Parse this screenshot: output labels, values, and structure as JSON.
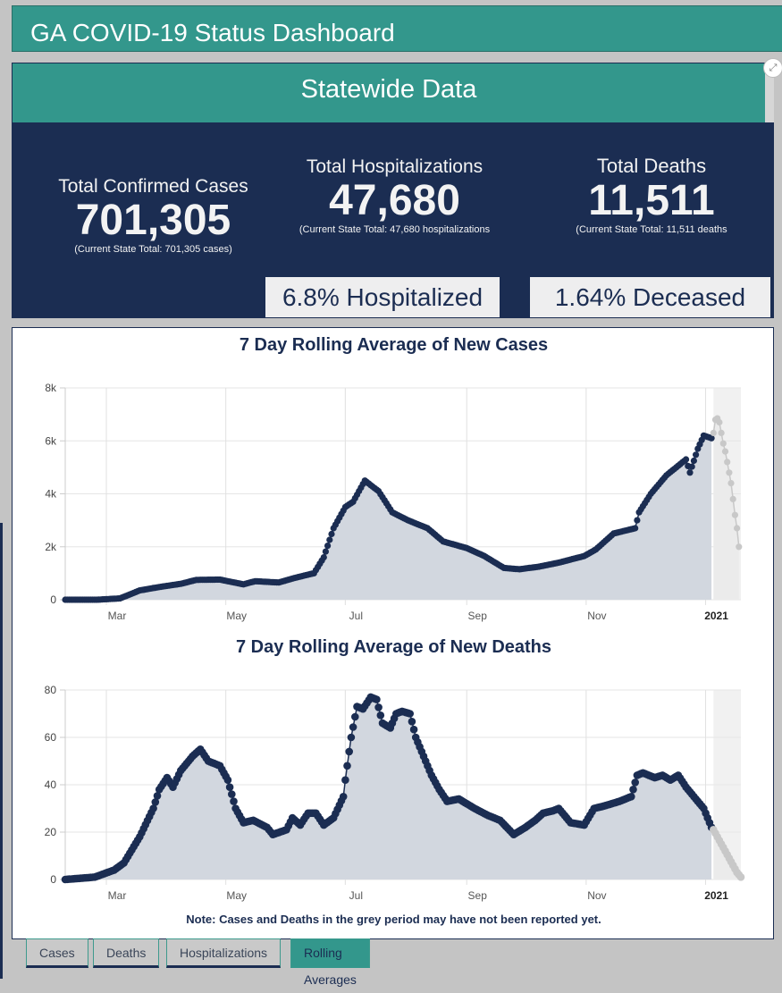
{
  "app": {
    "title": "GA COVID-19 Status Dashboard"
  },
  "statewide": {
    "header": "Statewide Data",
    "expand_icon": "expand-arrows-icon",
    "cases": {
      "label": "Total Confirmed Cases",
      "value": "701,305",
      "sub": "(Current State Total: 701,305 cases)"
    },
    "hospitalizations": {
      "label": "Total Hospitalizations",
      "value": "47,680",
      "sub": "(Current State Total: 47,680 hospitalizations"
    },
    "deaths": {
      "label": "Total Deaths",
      "value": "11,511",
      "sub": "(Current State Total: 11,511 deaths"
    },
    "hospitalized_pct": "6.8% Hospitalized",
    "deceased_pct": "1.64% Deceased"
  },
  "note": "Note: Cases and Deaths in the grey period may have not been reported yet.",
  "tabs": [
    {
      "label": "Cases",
      "active": false
    },
    {
      "label": "Deaths",
      "active": false
    },
    {
      "label": "Hospitalizations",
      "active": false
    },
    {
      "label": "Rolling Averages",
      "active": true
    }
  ],
  "colors": {
    "teal": "#33978c",
    "navy": "#1b2d52",
    "grey_points": "#c8c8c8",
    "area_fill": "#d2d7df"
  },
  "chart_data": [
    {
      "type": "area",
      "title": "7 Day Rolling Average of New Cases",
      "xlabel": "",
      "ylabel": "",
      "x_start": "2020-02-09",
      "x_end": "2021-01-19",
      "grey_period_start": "2021-01-05",
      "ylim": [
        0,
        8000
      ],
      "yticks": [
        0,
        2000,
        4000,
        6000,
        8000
      ],
      "ytick_labels": [
        "0",
        "2k",
        "4k",
        "6k",
        "8k"
      ],
      "xticks": [
        "2020-03-01",
        "2020-05-01",
        "2020-07-01",
        "2020-09-01",
        "2020-11-01",
        "2021-01-01"
      ],
      "xtick_labels": [
        "Mar",
        "May",
        "Jul",
        "Sep",
        "Nov",
        "2021"
      ],
      "grid": true,
      "series": [
        {
          "name": "reported",
          "points": [
            [
              "2020-02-09",
              0
            ],
            [
              "2020-02-25",
              0
            ],
            [
              "2020-03-08",
              50
            ],
            [
              "2020-03-18",
              350
            ],
            [
              "2020-03-28",
              480
            ],
            [
              "2020-04-08",
              600
            ],
            [
              "2020-04-16",
              750
            ],
            [
              "2020-04-28",
              760
            ],
            [
              "2020-05-10",
              580
            ],
            [
              "2020-05-16",
              700
            ],
            [
              "2020-05-28",
              650
            ],
            [
              "2020-06-05",
              820
            ],
            [
              "2020-06-15",
              1000
            ],
            [
              "2020-06-20",
              1600
            ],
            [
              "2020-06-25",
              2700
            ],
            [
              "2020-07-01",
              3500
            ],
            [
              "2020-07-05",
              3700
            ],
            [
              "2020-07-11",
              4500
            ],
            [
              "2020-07-18",
              4100
            ],
            [
              "2020-07-25",
              3300
            ],
            [
              "2020-08-02",
              3000
            ],
            [
              "2020-08-12",
              2700
            ],
            [
              "2020-08-20",
              2200
            ],
            [
              "2020-09-01",
              1950
            ],
            [
              "2020-09-10",
              1650
            ],
            [
              "2020-09-20",
              1200
            ],
            [
              "2020-09-28",
              1150
            ],
            [
              "2020-10-08",
              1250
            ],
            [
              "2020-10-18",
              1400
            ],
            [
              "2020-10-31",
              1650
            ],
            [
              "2020-11-06",
              1900
            ],
            [
              "2020-11-15",
              2500
            ],
            [
              "2020-11-26",
              2700
            ],
            [
              "2020-11-28",
              3300
            ],
            [
              "2020-12-04",
              4000
            ],
            [
              "2020-12-12",
              4700
            ],
            [
              "2020-12-22",
              5300
            ],
            [
              "2020-12-24",
              4800
            ],
            [
              "2020-12-28",
              5700
            ],
            [
              "2020-12-31",
              6200
            ],
            [
              "2021-01-04",
              6100
            ]
          ]
        },
        {
          "name": "grey_period",
          "points": [
            [
              "2021-01-05",
              6300
            ],
            [
              "2021-01-06",
              6800
            ],
            [
              "2021-01-07",
              6850
            ],
            [
              "2021-01-08",
              6700
            ],
            [
              "2021-01-09",
              6300
            ],
            [
              "2021-01-10",
              5900
            ],
            [
              "2021-01-11",
              5600
            ],
            [
              "2021-01-12",
              5200
            ],
            [
              "2021-01-13",
              4800
            ],
            [
              "2021-01-14",
              4400
            ],
            [
              "2021-01-15",
              3800
            ],
            [
              "2021-01-16",
              3200
            ],
            [
              "2021-01-17",
              2700
            ],
            [
              "2021-01-18",
              2000
            ]
          ]
        }
      ]
    },
    {
      "type": "area",
      "title": "7 Day Rolling Average of New Deaths",
      "xlabel": "",
      "ylabel": "",
      "x_start": "2020-02-09",
      "x_end": "2021-01-19",
      "grey_period_start": "2021-01-05",
      "ylim": [
        0,
        80
      ],
      "yticks": [
        0,
        20,
        40,
        60,
        80
      ],
      "ytick_labels": [
        "0",
        "20",
        "40",
        "60",
        "80"
      ],
      "xticks": [
        "2020-03-01",
        "2020-05-01",
        "2020-07-01",
        "2020-09-01",
        "2020-11-01",
        "2021-01-01"
      ],
      "xtick_labels": [
        "Mar",
        "May",
        "Jul",
        "Sep",
        "Nov",
        "2021"
      ],
      "grid": true,
      "series": [
        {
          "name": "reported",
          "points": [
            [
              "2020-02-09",
              0
            ],
            [
              "2020-02-24",
              1
            ],
            [
              "2020-03-05",
              4
            ],
            [
              "2020-03-10",
              7
            ],
            [
              "2020-03-18",
              18
            ],
            [
              "2020-03-25",
              30
            ],
            [
              "2020-03-28",
              38
            ],
            [
              "2020-04-01",
              43
            ],
            [
              "2020-04-04",
              39
            ],
            [
              "2020-04-08",
              46
            ],
            [
              "2020-04-14",
              52
            ],
            [
              "2020-04-18",
              55
            ],
            [
              "2020-04-22",
              50
            ],
            [
              "2020-04-28",
              48
            ],
            [
              "2020-05-02",
              42
            ],
            [
              "2020-05-06",
              30
            ],
            [
              "2020-05-10",
              24
            ],
            [
              "2020-05-15",
              25
            ],
            [
              "2020-05-22",
              22
            ],
            [
              "2020-05-25",
              19
            ],
            [
              "2020-06-01",
              21
            ],
            [
              "2020-06-04",
              26
            ],
            [
              "2020-06-08",
              23
            ],
            [
              "2020-06-12",
              28
            ],
            [
              "2020-06-16",
              28
            ],
            [
              "2020-06-20",
              23
            ],
            [
              "2020-06-25",
              26
            ],
            [
              "2020-06-30",
              35
            ],
            [
              "2020-07-01",
              42
            ],
            [
              "2020-07-04",
              60
            ],
            [
              "2020-07-07",
              73
            ],
            [
              "2020-07-10",
              72
            ],
            [
              "2020-07-14",
              77
            ],
            [
              "2020-07-17",
              76
            ],
            [
              "2020-07-20",
              66
            ],
            [
              "2020-07-24",
              64
            ],
            [
              "2020-07-27",
              70
            ],
            [
              "2020-07-30",
              71
            ],
            [
              "2020-08-03",
              70
            ],
            [
              "2020-08-06",
              60
            ],
            [
              "2020-08-10",
              52
            ],
            [
              "2020-08-14",
              44
            ],
            [
              "2020-08-18",
              38
            ],
            [
              "2020-08-22",
              33
            ],
            [
              "2020-08-28",
              34
            ],
            [
              "2020-09-05",
              30
            ],
            [
              "2020-09-12",
              27
            ],
            [
              "2020-09-18",
              25
            ],
            [
              "2020-09-25",
              19
            ],
            [
              "2020-10-01",
              22
            ],
            [
              "2020-10-06",
              25
            ],
            [
              "2020-10-10",
              28
            ],
            [
              "2020-10-15",
              29
            ],
            [
              "2020-10-18",
              30
            ],
            [
              "2020-10-24",
              24
            ],
            [
              "2020-10-31",
              23
            ],
            [
              "2020-11-05",
              30
            ],
            [
              "2020-11-10",
              31
            ],
            [
              "2020-11-18",
              33
            ],
            [
              "2020-11-24",
              35
            ],
            [
              "2020-11-27",
              44
            ],
            [
              "2020-11-30",
              45
            ],
            [
              "2020-12-06",
              43
            ],
            [
              "2020-12-10",
              44
            ],
            [
              "2020-12-14",
              42
            ],
            [
              "2020-12-18",
              44
            ],
            [
              "2020-12-22",
              39
            ],
            [
              "2020-12-27",
              34
            ],
            [
              "2020-12-31",
              30
            ],
            [
              "2021-01-04",
              22
            ]
          ]
        },
        {
          "name": "grey_period",
          "points": [
            [
              "2021-01-05",
              21
            ],
            [
              "2021-01-07",
              18
            ],
            [
              "2021-01-09",
              15
            ],
            [
              "2021-01-11",
              12
            ],
            [
              "2021-01-13",
              9
            ],
            [
              "2021-01-15",
              6
            ],
            [
              "2021-01-17",
              3
            ],
            [
              "2021-01-19",
              1
            ]
          ]
        }
      ]
    }
  ]
}
